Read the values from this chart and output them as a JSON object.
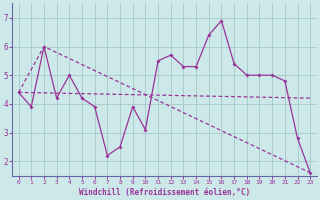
{
  "xlabel": "Windchill (Refroidissement éolien,°C)",
  "background_color": "#cce8e8",
  "grid_color": "#aacccc",
  "line_color": "#993399",
  "spine_color": "#6666aa",
  "xlim": [
    -0.5,
    23.5
  ],
  "ylim": [
    1.5,
    7.5
  ],
  "yticks": [
    2,
    3,
    4,
    5,
    6,
    7
  ],
  "xticks": [
    0,
    1,
    2,
    3,
    4,
    5,
    6,
    7,
    8,
    9,
    10,
    11,
    12,
    13,
    14,
    15,
    16,
    17,
    18,
    19,
    20,
    21,
    22,
    23
  ],
  "line1_x": [
    0,
    1,
    2,
    3,
    4,
    5,
    6,
    7,
    8,
    9,
    10,
    11,
    12,
    13,
    14,
    15,
    16,
    17,
    18,
    19,
    20,
    21,
    22,
    23
  ],
  "line1_y": [
    4.4,
    3.9,
    6.0,
    4.2,
    5.0,
    4.2,
    3.9,
    2.2,
    2.5,
    3.9,
    3.1,
    5.5,
    5.7,
    5.3,
    5.3,
    6.4,
    6.9,
    5.4,
    5.0,
    5.0,
    5.0,
    4.8,
    2.8,
    1.6
  ],
  "line2_x": [
    0,
    2,
    23
  ],
  "line2_y": [
    4.4,
    6.0,
    1.6
  ],
  "line3_x": [
    0,
    23
  ],
  "line3_y": [
    4.4,
    4.2
  ]
}
